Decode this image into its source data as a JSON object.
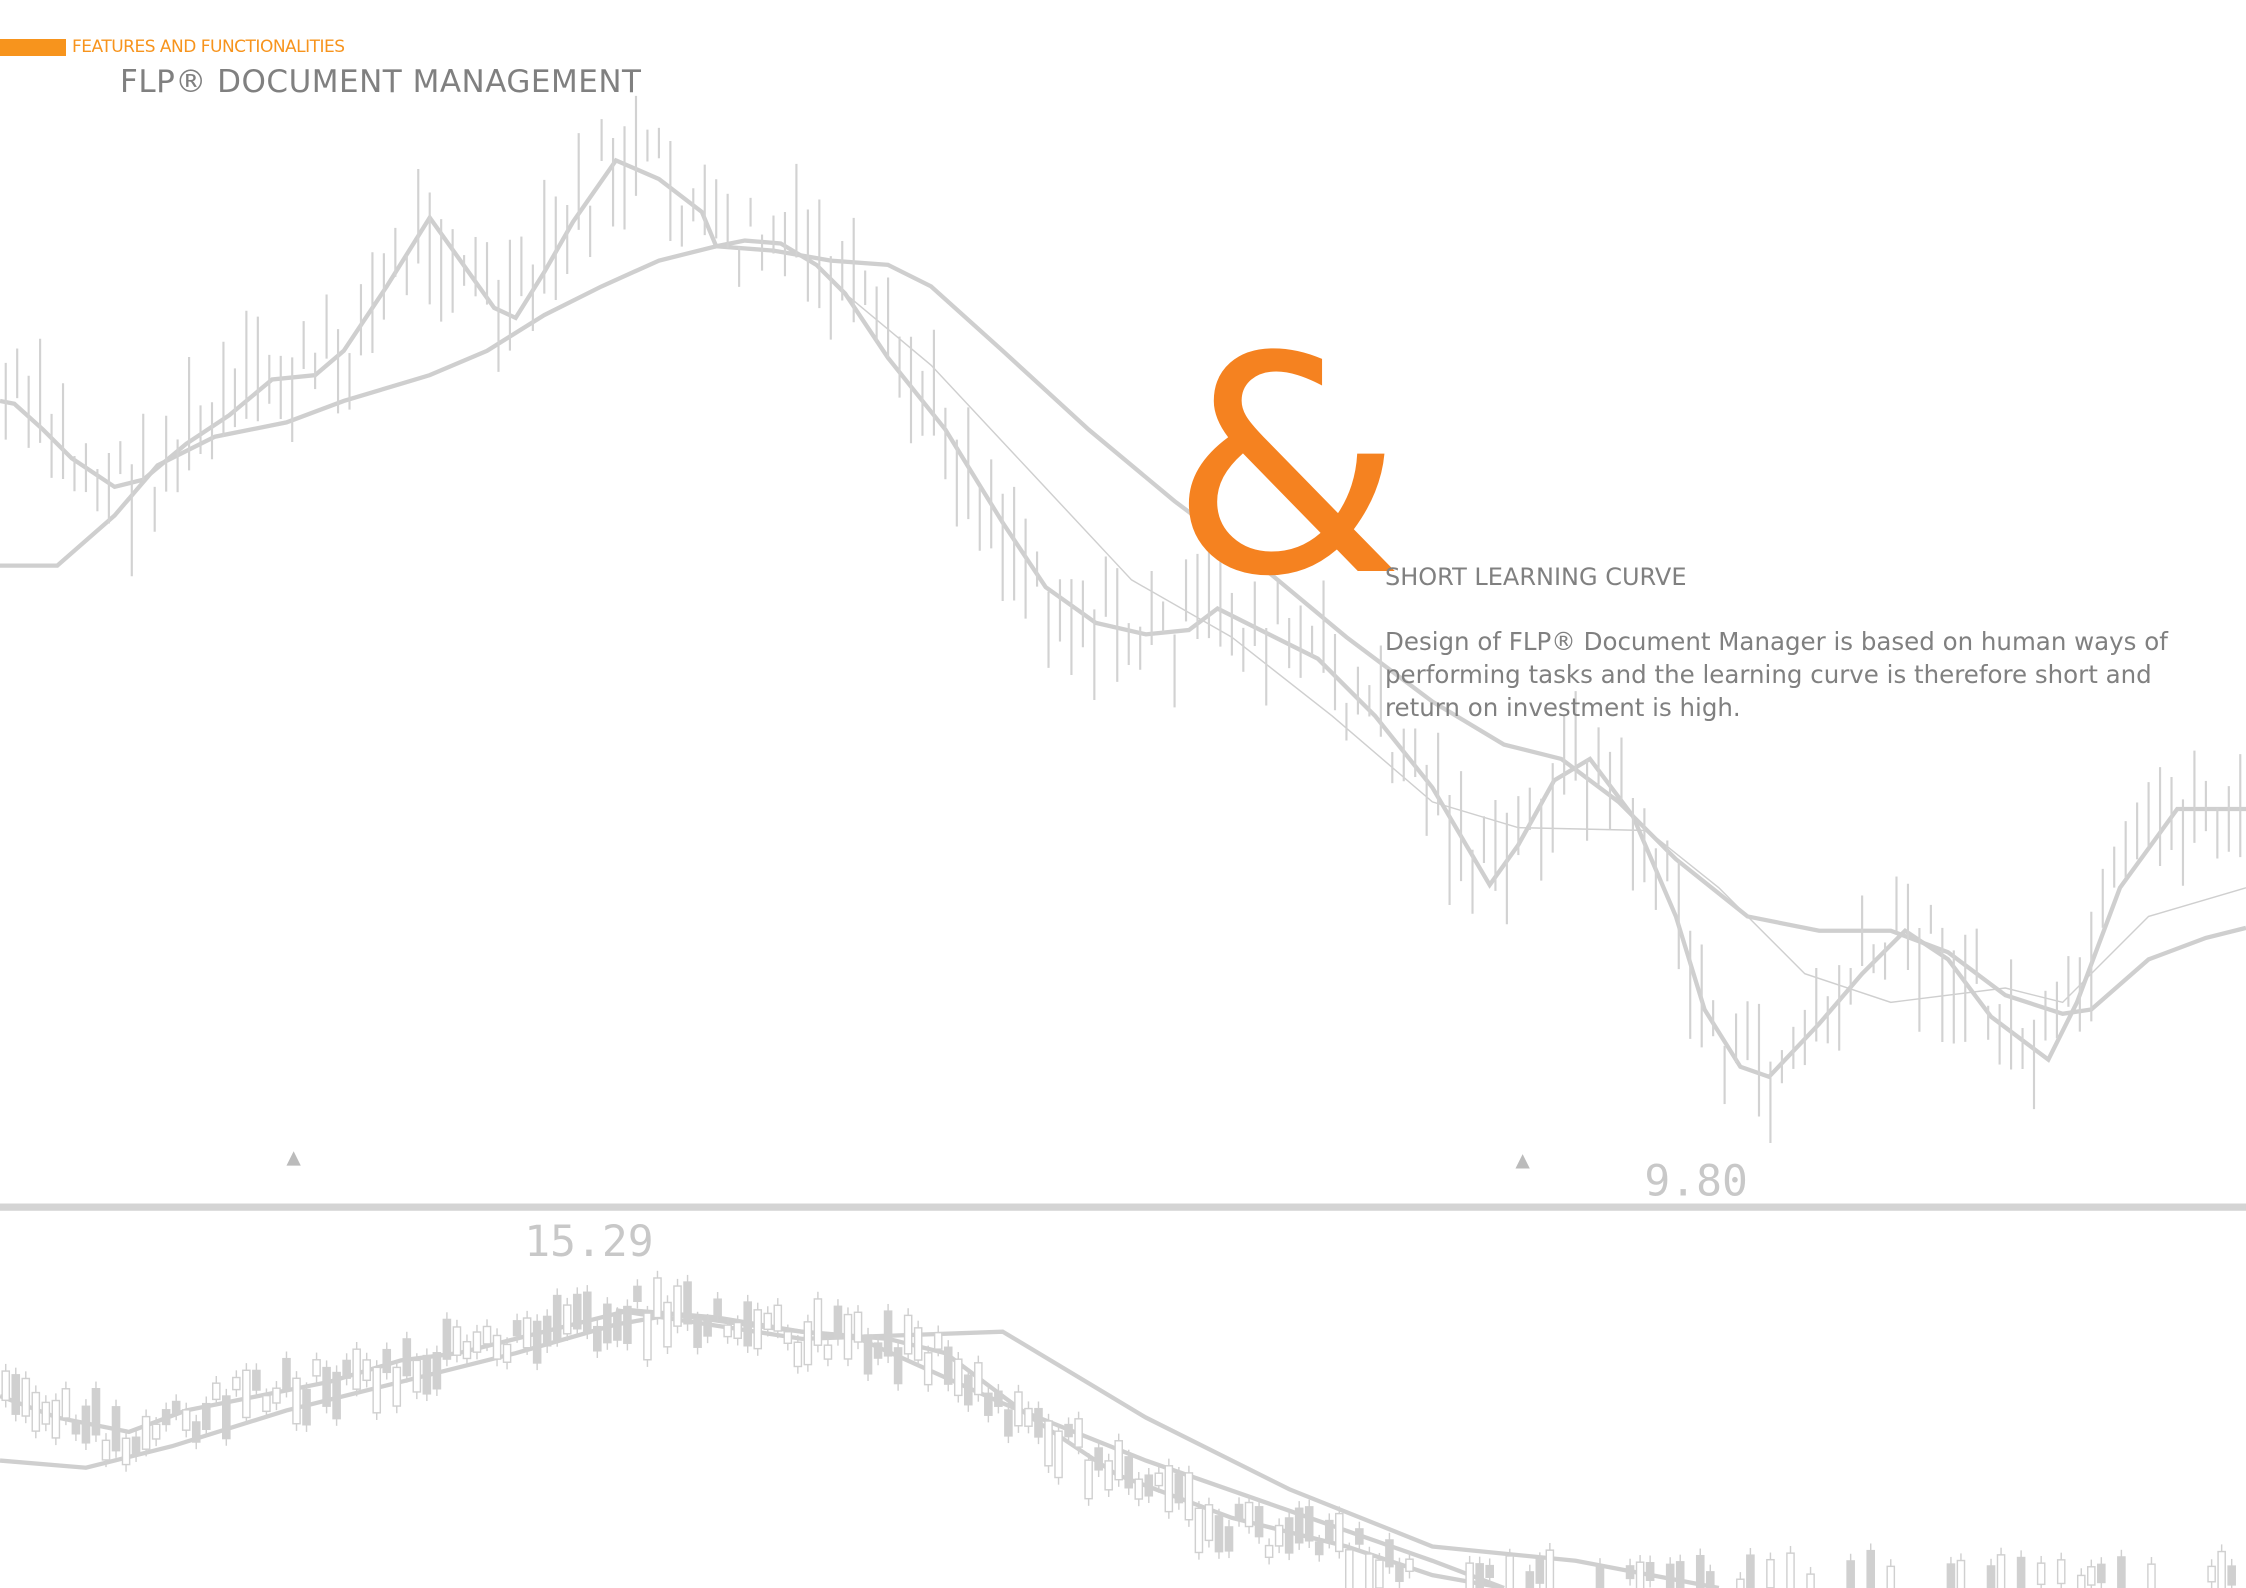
{
  "header": {
    "section": "FEATURES AND FUNCTIONALITIES",
    "title": "FLP® DOCUMENT MANAGEMENT"
  },
  "background": {
    "labels": [
      "9.80",
      "15.29"
    ]
  },
  "content": {
    "symbol": "&",
    "heading": "SHORT LEARNING CURVE",
    "body": "Design of FLP® Document Manager is based on human ways of performing tasks and the learning curve is therefore short and return on investment is high."
  }
}
